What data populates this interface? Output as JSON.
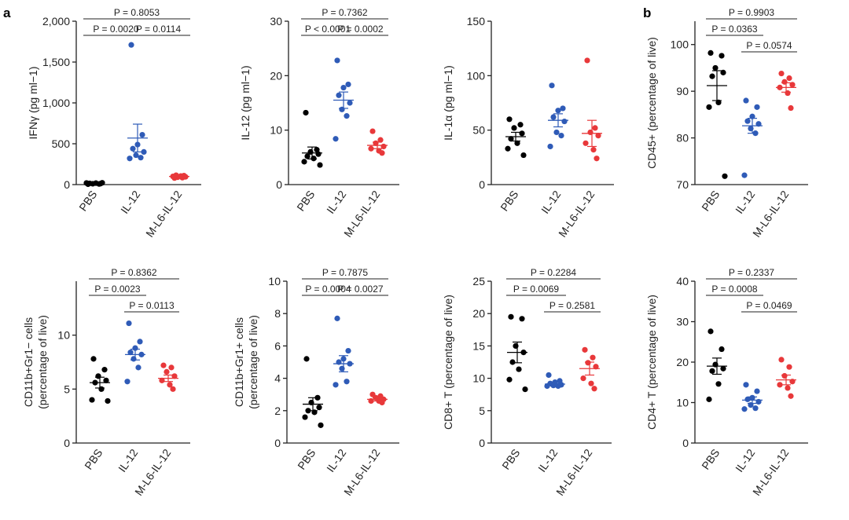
{
  "panel_labels": [
    "a",
    "b"
  ],
  "categories": [
    "PBS",
    "IL-12",
    "M-L6-IL-12"
  ],
  "colors": {
    "PBS": "#000000",
    "IL-12": "#2f5bb7",
    "M-L6-IL-12": "#e8383a"
  },
  "chart_data": [
    {
      "type": "scatter",
      "ylabel": "IFNγ (pg ml−1)",
      "ylim": [
        0,
        2000
      ],
      "yticks": [
        "0",
        "500",
        "1,000",
        "1,500",
        "2,000"
      ],
      "ytick_values": [
        0,
        500,
        1000,
        1500,
        2000
      ],
      "categories": [
        "PBS",
        "IL-12",
        "M-L6-IL-12"
      ],
      "series": [
        {
          "values": [
            5,
            8,
            10,
            12,
            15,
            18,
            20,
            22
          ],
          "mean": 14,
          "sem": 3
        },
        {
          "values": [
            1710,
            610,
            490,
            440,
            400,
            360,
            330,
            320
          ],
          "mean": 570,
          "sem": 170
        },
        {
          "values": [
            80,
            85,
            90,
            95,
            100,
            105,
            110,
            115
          ],
          "mean": 100,
          "sem": 8
        }
      ],
      "pvalues": [
        {
          "label": "P = 0.8053",
          "from": 0,
          "to": 2,
          "level": 0
        },
        {
          "label": "P = 0.0020",
          "from": 0,
          "to": 1,
          "level": 1
        },
        {
          "label": "P = 0.0114",
          "from": 1,
          "to": 2,
          "level": 1
        }
      ]
    },
    {
      "type": "scatter",
      "ylabel": "IL-12 (pg ml−1)",
      "ylim": [
        0,
        30
      ],
      "yticks": [
        "0",
        "10",
        "20",
        "30"
      ],
      "ytick_values": [
        0,
        10,
        20,
        30
      ],
      "categories": [
        "PBS",
        "IL-12",
        "M-L6-IL-12"
      ],
      "series": [
        {
          "values": [
            13.2,
            6.4,
            6.0,
            5.6,
            5.2,
            4.8,
            4.2,
            3.6
          ],
          "mean": 5.8,
          "sem": 1.1
        },
        {
          "values": [
            22.8,
            18.4,
            17.8,
            16.4,
            15.0,
            13.8,
            12.6,
            8.4
          ],
          "mean": 15.5,
          "sem": 1.5
        },
        {
          "values": [
            9.8,
            8.2,
            7.6,
            7.0,
            6.6,
            6.2,
            5.8
          ],
          "mean": 7.2,
          "sem": 0.6
        }
      ],
      "pvalues": [
        {
          "label": "P = 0.7362",
          "from": 0,
          "to": 2,
          "level": 0
        },
        {
          "label": "P < 0.0001",
          "from": 0,
          "to": 1,
          "level": 1
        },
        {
          "label": "P = 0.0002",
          "from": 1,
          "to": 2,
          "level": 1
        }
      ]
    },
    {
      "type": "scatter",
      "ylabel": "IL-1α (pg ml−1)",
      "ylim": [
        0,
        150
      ],
      "yticks": [
        "0",
        "50",
        "100",
        "150"
      ],
      "ytick_values": [
        0,
        50,
        100,
        150
      ],
      "categories": [
        "PBS",
        "IL-12",
        "M-L6-IL-12"
      ],
      "series": [
        {
          "values": [
            60,
            55,
            52,
            47,
            42,
            38,
            33,
            27
          ],
          "mean": 44,
          "sem": 4
        },
        {
          "values": [
            91,
            70,
            68,
            62,
            58,
            48,
            45,
            35
          ],
          "mean": 59,
          "sem": 6
        },
        {
          "values": [
            114,
            52,
            48,
            45,
            38,
            32,
            24
          ],
          "mean": 47,
          "sem": 12
        }
      ],
      "pvalues": []
    },
    {
      "type": "scatter",
      "ylabel": "CD45+ (percentage of live)",
      "ylim": [
        70,
        105
      ],
      "yticks": [
        "70",
        "80",
        "90",
        "100"
      ],
      "ytick_values": [
        70,
        80,
        90,
        100
      ],
      "categories": [
        "PBS",
        "IL-12",
        "M-L6-IL-12"
      ],
      "series": [
        {
          "values": [
            98.2,
            97.6,
            95.0,
            94.0,
            93.2,
            87.6,
            86.6,
            71.8
          ],
          "mean": 91.2,
          "sem": 3.2
        },
        {
          "values": [
            88.0,
            86.6,
            84.6,
            83.6,
            83.0,
            82.0,
            81.0,
            72.0
          ],
          "mean": 82.6,
          "sem": 1.6
        },
        {
          "values": [
            93.8,
            92.8,
            92.0,
            91.4,
            90.8,
            89.6,
            86.4
          ],
          "mean": 90.8,
          "sem": 1.0
        }
      ],
      "pvalues": [
        {
          "label": "P = 0.9903",
          "from": 0,
          "to": 2,
          "level": 0
        },
        {
          "label": "P = 0.0363",
          "from": 0,
          "to": 1,
          "level": 1
        },
        {
          "label": "P = 0.0574",
          "from": 1,
          "to": 2,
          "level": 2
        }
      ]
    },
    {
      "type": "scatter",
      "ylabel": "CD11b+Gr1− cells\n(percentage of live)",
      "ylim": [
        0,
        15
      ],
      "yticks": [
        "0",
        "5",
        "10"
      ],
      "ytick_values": [
        0,
        5,
        10
      ],
      "categories": [
        "PBS",
        "IL-12",
        "M-L6-IL-12"
      ],
      "series": [
        {
          "values": [
            7.8,
            6.8,
            6.2,
            5.8,
            5.6,
            5.0,
            4.0,
            3.9
          ],
          "mean": 5.6,
          "sem": 0.5
        },
        {
          "values": [
            11.1,
            9.4,
            8.8,
            8.4,
            8.2,
            7.8,
            7.0,
            5.7
          ],
          "mean": 8.2,
          "sem": 0.5
        },
        {
          "values": [
            7.2,
            7.0,
            6.6,
            6.2,
            5.8,
            5.4,
            5.0
          ],
          "mean": 6.0,
          "sem": 0.3
        }
      ],
      "pvalues": [
        {
          "label": "P = 0.8362",
          "from": 0,
          "to": 2,
          "level": 0
        },
        {
          "label": "P = 0.0023",
          "from": 0,
          "to": 1,
          "level": 1
        },
        {
          "label": "P = 0.0113",
          "from": 1,
          "to": 2,
          "level": 2
        }
      ]
    },
    {
      "type": "scatter",
      "ylabel": "CD11b+Gr1+ cells\n(percentage of live)",
      "ylim": [
        0,
        10
      ],
      "yticks": [
        "0",
        "2",
        "4",
        "6",
        "8",
        "10"
      ],
      "ytick_values": [
        0,
        2,
        4,
        6,
        8,
        10
      ],
      "categories": [
        "PBS",
        "IL-12",
        "M-L6-IL-12"
      ],
      "series": [
        {
          "values": [
            5.2,
            2.8,
            2.5,
            2.2,
            2.0,
            1.9,
            1.6,
            1.1
          ],
          "mean": 2.4,
          "sem": 0.4
        },
        {
          "values": [
            7.7,
            5.7,
            5.2,
            5.0,
            4.9,
            4.6,
            3.8,
            3.6
          ],
          "mean": 4.9,
          "sem": 0.5
        },
        {
          "values": [
            3.0,
            2.9,
            2.8,
            2.7,
            2.6,
            2.6,
            2.5
          ],
          "mean": 2.7,
          "sem": 0.1
        }
      ],
      "pvalues": [
        {
          "label": "P = 0.7875",
          "from": 0,
          "to": 2,
          "level": 0
        },
        {
          "label": "P = 0.0004",
          "from": 0,
          "to": 1,
          "level": 1
        },
        {
          "label": "P = 0.0027",
          "from": 1,
          "to": 2,
          "level": 1
        }
      ]
    },
    {
      "type": "scatter",
      "ylabel": "CD8+ T (percentage of live)",
      "ylim": [
        0,
        25
      ],
      "yticks": [
        "0",
        "5",
        "10",
        "15",
        "20",
        "25"
      ],
      "ytick_values": [
        0,
        5,
        10,
        15,
        20,
        25
      ],
      "categories": [
        "PBS",
        "IL-12",
        "M-L6-IL-12"
      ],
      "series": [
        {
          "values": [
            19.5,
            19.2,
            15.0,
            14.0,
            12.5,
            11.4,
            9.8,
            8.3
          ],
          "mean": 14.0,
          "sem": 1.6
        },
        {
          "values": [
            10.5,
            9.6,
            9.4,
            9.2,
            9.0,
            8.9,
            8.8,
            8.8
          ],
          "mean": 9.1,
          "sem": 0.3
        },
        {
          "values": [
            14.4,
            13.2,
            12.4,
            11.8,
            10.0,
            9.2,
            8.4
          ],
          "mean": 11.5,
          "sem": 1.0
        }
      ],
      "pvalues": [
        {
          "label": "P = 0.2284",
          "from": 0,
          "to": 2,
          "level": 0
        },
        {
          "label": "P = 0.0069",
          "from": 0,
          "to": 1,
          "level": 1
        },
        {
          "label": "P = 0.2581",
          "from": 1,
          "to": 2,
          "level": 2
        }
      ]
    },
    {
      "type": "scatter",
      "ylabel": "CD4+ T (percentage of live)",
      "ylim": [
        0,
        40
      ],
      "yticks": [
        "0",
        "10",
        "20",
        "30",
        "40"
      ],
      "ytick_values": [
        0,
        10,
        20,
        30,
        40
      ],
      "categories": [
        "PBS",
        "IL-12",
        "M-L6-IL-12"
      ],
      "series": [
        {
          "values": [
            27.6,
            23.2,
            19.4,
            18.4,
            17.8,
            14.6,
            10.8
          ],
          "mean": 19.0,
          "sem": 2.0
        },
        {
          "values": [
            14.4,
            12.8,
            11.2,
            10.8,
            10.2,
            9.4,
            8.6,
            8.4
          ],
          "mean": 10.6,
          "sem": 0.8
        },
        {
          "values": [
            20.6,
            18.8,
            16.6,
            15.2,
            14.4,
            13.6,
            11.6
          ],
          "mean": 15.6,
          "sem": 1.2
        }
      ],
      "pvalues": [
        {
          "label": "P = 0.2337",
          "from": 0,
          "to": 2,
          "level": 0
        },
        {
          "label": "P = 0.0008",
          "from": 0,
          "to": 1,
          "level": 1
        },
        {
          "label": "P = 0.0469",
          "from": 1,
          "to": 2,
          "level": 2
        }
      ]
    }
  ]
}
